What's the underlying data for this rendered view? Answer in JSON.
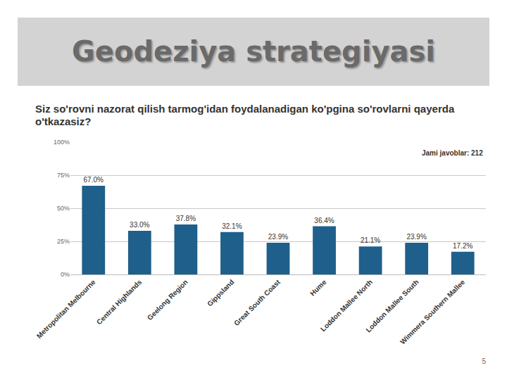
{
  "slide": {
    "heading": "Geodeziya strategiyasi",
    "page_number": "5"
  },
  "chart_data": {
    "type": "bar",
    "title": "Siz so'rovni nazorat qilish tarmog'idan foydalanadigan ko'pgina so'rovlarni qayerda o'tkazasiz?",
    "categories": [
      "Metropolitan Melbourne",
      "Central Highlands",
      "Geelong Region",
      "Gippsland",
      "Great South Coast",
      "Hume",
      "Loddon Mallee North",
      "Loddon Mallee South",
      "Wimmera Southern Mallee"
    ],
    "values": [
      67.0,
      33.0,
      37.8,
      32.1,
      23.9,
      36.4,
      21.1,
      23.9,
      17.2
    ],
    "value_labels": [
      "67.0%",
      "33.0%",
      "37.8%",
      "32.1%",
      "23.9%",
      "36.4%",
      "21.1%",
      "23.9%",
      "17.2%"
    ],
    "color": "#1f5f8b",
    "ylim": [
      0,
      100
    ],
    "yticks": [
      {
        "value": 0,
        "label": "0%"
      },
      {
        "value": 25,
        "label": "25%"
      },
      {
        "value": 50,
        "label": "50%"
      },
      {
        "value": 75,
        "label": "75%"
      },
      {
        "value": 100,
        "label": "100%"
      }
    ],
    "grid": true,
    "data_labels": true,
    "annotations": [
      "Jami javoblar: 212"
    ]
  }
}
